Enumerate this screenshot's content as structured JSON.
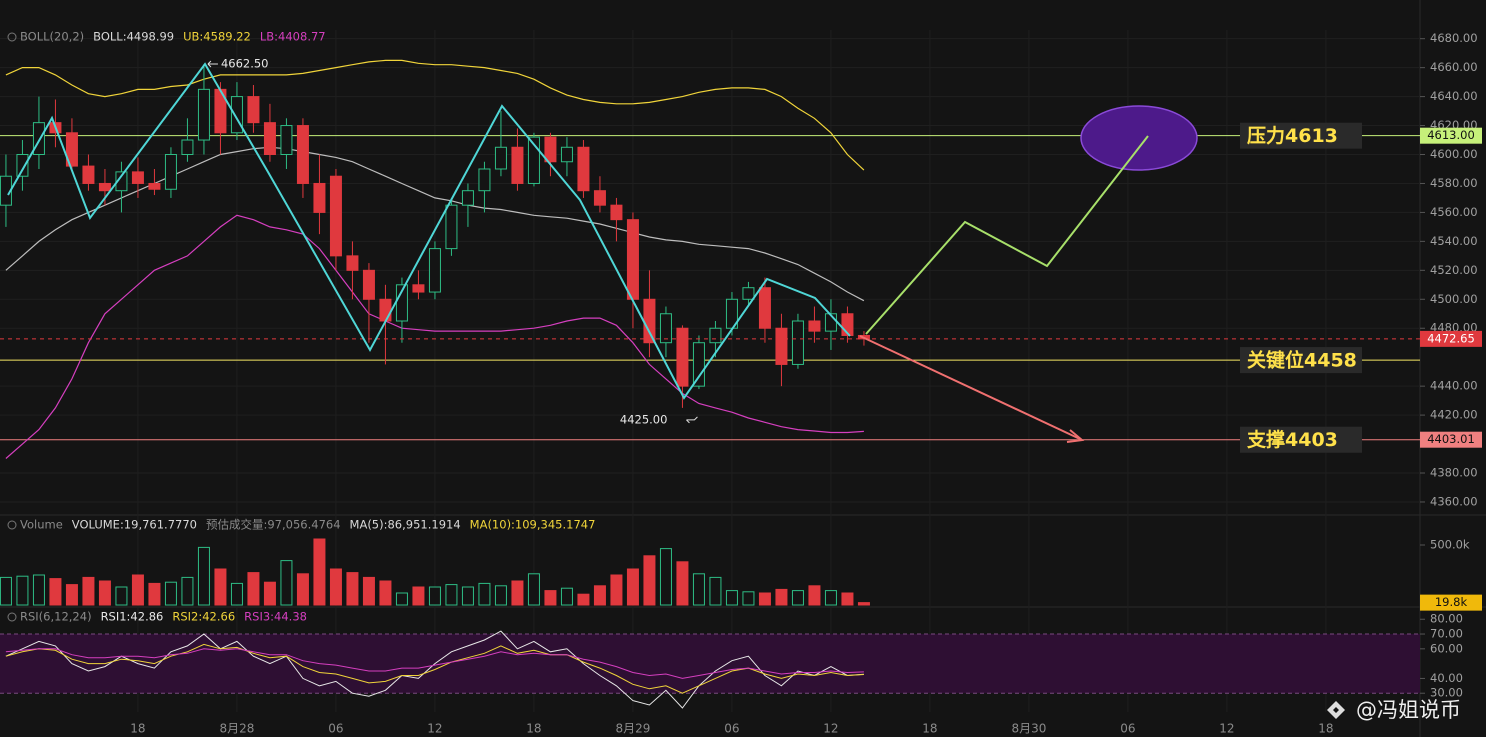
{
  "chart_data": [
    {
      "type": "candlestick",
      "up_color": "#2ebd85",
      "down_color": "#e0393e",
      "x": [
        0,
        1,
        2,
        3,
        4,
        5,
        6,
        7,
        8,
        9,
        10,
        11,
        12,
        13,
        14,
        15,
        16,
        17,
        18,
        19,
        20,
        21,
        22,
        23,
        24,
        25,
        26,
        27,
        28,
        29,
        30,
        31,
        32,
        33,
        34,
        35,
        36,
        37,
        38,
        39,
        40,
        41,
        42,
        43,
        44,
        45,
        46,
        47,
        48,
        49,
        50,
        51,
        52
      ],
      "open": [
        4565,
        4585,
        4600,
        4622,
        4615,
        4592,
        4580,
        4575,
        4588,
        4580,
        4576,
        4600,
        4610,
        4645,
        4615,
        4640,
        4622,
        4600,
        4620,
        4580,
        4585,
        4530,
        4520,
        4500,
        4485,
        4510,
        4505,
        4535,
        4565,
        4575,
        4590,
        4605,
        4580,
        4612,
        4595,
        4605,
        4575,
        4565,
        4555,
        4500,
        4470,
        4480,
        4440,
        4470,
        4480,
        4500,
        4508,
        4480,
        4455,
        4485,
        4478,
        4490,
        4475
      ],
      "high": [
        4600,
        4610,
        4640,
        4638,
        4625,
        4600,
        4590,
        4595,
        4598,
        4590,
        4605,
        4625,
        4662.5,
        4650,
        4650,
        4648,
        4635,
        4625,
        4625,
        4600,
        4590,
        4540,
        4525,
        4510,
        4515,
        4520,
        4540,
        4570,
        4580,
        4595,
        4630,
        4618,
        4615,
        4615,
        4612,
        4610,
        4585,
        4570,
        4560,
        4520,
        4495,
        4482,
        4475,
        4485,
        4505,
        4512,
        4515,
        4490,
        4490,
        4495,
        4500,
        4495,
        4478
      ],
      "low": [
        4550,
        4575,
        4590,
        4605,
        4590,
        4575,
        4565,
        4560,
        4570,
        4572,
        4570,
        4595,
        4600,
        4600,
        4610,
        4615,
        4595,
        4590,
        4570,
        4545,
        4520,
        4500,
        4470,
        4455,
        4470,
        4500,
        4500,
        4530,
        4550,
        4560,
        4585,
        4575,
        4578,
        4585,
        4585,
        4570,
        4560,
        4540,
        4480,
        4460,
        4460,
        4425,
        4438,
        4460,
        4475,
        4495,
        4470,
        4440,
        4452,
        4470,
        4465,
        4470,
        4468
      ],
      "close": [
        4585,
        4600,
        4622,
        4615,
        4592,
        4580,
        4575,
        4588,
        4580,
        4576,
        4600,
        4610,
        4645,
        4615,
        4640,
        4622,
        4600,
        4620,
        4580,
        4560,
        4530,
        4520,
        4500,
        4485,
        4510,
        4505,
        4535,
        4565,
        4575,
        4590,
        4605,
        4580,
        4612,
        4595,
        4605,
        4575,
        4565,
        4555,
        4500,
        4470,
        4490,
        4440,
        4470,
        4480,
        4500,
        4508,
        4480,
        4455,
        4485,
        4478,
        4490,
        4475,
        4472.65
      ],
      "series": [
        {
          "color": "#f0d43a",
          "values": [
            4655,
            4660,
            4660,
            4655,
            4648,
            4642,
            4640,
            4642,
            4645,
            4645,
            4647,
            4648,
            4652,
            4655,
            4655,
            4655,
            4655,
            4655,
            4656,
            4658,
            4660,
            4662,
            4664,
            4665,
            4665,
            4663,
            4662,
            4662,
            4661,
            4660,
            4658,
            4656,
            4652,
            4646,
            4641,
            4638,
            4636,
            4635,
            4635,
            4636,
            4638,
            4640,
            4643,
            4645,
            4646,
            4646,
            4645,
            4640,
            4632,
            4625,
            4615,
            4600,
            4589.22
          ]
        },
        {
          "color": "#bdbdbd",
          "values": [
            4520,
            4530,
            4540,
            4548,
            4555,
            4560,
            4565,
            4570,
            4575,
            4580,
            4585,
            4590,
            4595,
            4600,
            4602,
            4604,
            4605,
            4604,
            4602,
            4600,
            4598,
            4595,
            4590,
            4585,
            4580,
            4575,
            4570,
            4568,
            4565,
            4563,
            4562,
            4560,
            4558,
            4557,
            4556,
            4554,
            4552,
            4549,
            4546,
            4543,
            4541,
            4540,
            4538,
            4537,
            4536,
            4535,
            4532,
            4528,
            4524,
            4518,
            4512,
            4505,
            4498.99
          ]
        },
        {
          "color": "#d53fbf",
          "values": [
            4390,
            4400,
            4410,
            4425,
            4445,
            4470,
            4490,
            4500,
            4510,
            4520,
            4525,
            4530,
            4540,
            4550,
            4558,
            4555,
            4550,
            4548,
            4545,
            4535,
            4520,
            4505,
            4490,
            4485,
            4480,
            4479,
            4478,
            4478,
            4478,
            4478,
            4478,
            4479,
            4480,
            4482,
            4485,
            4487,
            4487,
            4482,
            4470,
            4455,
            4445,
            4435,
            4428,
            4425,
            4422,
            4418,
            4415,
            4412,
            4410,
            4409,
            4408,
            4408,
            4408.77
          ]
        }
      ],
      "legend": [
        {
          "label": "BOLL(20,2)",
          "color": "#8a8a8a"
        },
        {
          "label": "BOLL:4498.99",
          "color": "#d8d8d8"
        },
        {
          "label": "UB:4589.22",
          "color": "#f0d43a"
        },
        {
          "label": "LB:4408.77",
          "color": "#d53fbf"
        }
      ],
      "xlim": [
        -0.36,
        85.7
      ],
      "xticks": [
        {
          "value": 8,
          "label": "18"
        },
        {
          "value": 14,
          "label": "8月28"
        },
        {
          "value": 20,
          "label": "06"
        },
        {
          "value": 26,
          "label": "12"
        },
        {
          "value": 32,
          "label": "18"
        },
        {
          "value": 38,
          "label": "8月29"
        },
        {
          "value": 44,
          "label": "06"
        },
        {
          "value": 50,
          "label": "12"
        },
        {
          "value": 56,
          "label": "18"
        },
        {
          "value": 62,
          "label": "8月30"
        },
        {
          "value": 68,
          "label": "06"
        },
        {
          "value": 74,
          "label": "12"
        },
        {
          "value": 80,
          "label": "18"
        }
      ],
      "ylim": [
        4351,
        4686
      ],
      "yticks": [
        {
          "value": 4680,
          "label": "4680.00"
        },
        {
          "value": 4660,
          "label": "4660.00"
        },
        {
          "value": 4640,
          "label": "4640.00"
        },
        {
          "value": 4620,
          "label": "4620.00"
        },
        {
          "value": 4600,
          "label": "4600.00"
        },
        {
          "value": 4580,
          "label": "4580.00"
        },
        {
          "value": 4560,
          "label": "4560.00"
        },
        {
          "value": 4540,
          "label": "4540.00"
        },
        {
          "value": 4520,
          "label": "4520.00"
        },
        {
          "value": 4500,
          "label": "4500.00"
        },
        {
          "value": 4480,
          "label": "4480.00"
        },
        {
          "value": 4440,
          "label": "4440.00"
        },
        {
          "value": 4420,
          "label": "4420.00"
        },
        {
          "value": 4380,
          "label": "4380.00"
        },
        {
          "value": 4360,
          "label": "4360.00"
        }
      ],
      "grid": true,
      "annotations": [
        {
          "x": 12,
          "value": 4662.5,
          "label": "4662.50",
          "side": "right"
        },
        {
          "x": 41,
          "value": 4425,
          "label": "4425.00",
          "side": "left"
        }
      ],
      "levels": [
        {
          "value": 4613,
          "label": "压力4613",
          "color": "#c6f07a"
        },
        {
          "value": 4458,
          "label": "关键位4458",
          "color": "#f5e663"
        },
        {
          "value": 4403,
          "label": "支撑4403",
          "color": "#f08080"
        }
      ],
      "price_tags": [
        {
          "value": 4613,
          "label": "4613.00",
          "color": "#c6f07a",
          "text_color": "#111111"
        },
        {
          "value": 4472.65,
          "label": "4472.65",
          "color": "#e0393e",
          "text_color": "#ffffff",
          "dashed": true
        },
        {
          "value": 4403.01,
          "label": "4403.01",
          "color": "#f08080",
          "text_color": "#111111"
        }
      ]
    },
    {
      "type": "bar",
      "values": [
        230000,
        240000,
        250000,
        220000,
        170000,
        230000,
        200000,
        150000,
        250000,
        180000,
        190000,
        230000,
        480000,
        300000,
        180000,
        270000,
        190000,
        370000,
        260000,
        550000,
        300000,
        270000,
        230000,
        200000,
        100000,
        150000,
        150000,
        170000,
        150000,
        180000,
        160000,
        200000,
        260000,
        120000,
        140000,
        90000,
        160000,
        250000,
        300000,
        410000,
        470000,
        360000,
        260000,
        230000,
        120000,
        110000,
        100000,
        130000,
        120000,
        160000,
        120000,
        100000,
        19761.777
      ],
      "legend": [
        {
          "label": "Volume",
          "color": "#8a8a8a"
        },
        {
          "label": "VOLUME:19,761.7770",
          "color": "#d8d8d8"
        },
        {
          "label": "预估成交量:97,056.4764",
          "color": "#8a8a8a"
        },
        {
          "label": "MA(5):86,951.1914",
          "color": "#d8d8d8"
        },
        {
          "label": "MA(10):109,345.1747",
          "color": "#f0d43a"
        }
      ],
      "ylim": [
        0,
        750000
      ],
      "yticks": [
        {
          "value": 500000,
          "label": "500.0k"
        }
      ],
      "current": {
        "value": 19761.777,
        "label": "19.8k",
        "color": "#f0b90b"
      }
    },
    {
      "type": "line",
      "series": [
        {
          "color": "#e8e8e8",
          "values": [
            55,
            60,
            65,
            62,
            50,
            45,
            48,
            55,
            50,
            47,
            58,
            62,
            70,
            60,
            65,
            55,
            50,
            55,
            40,
            35,
            38,
            30,
            28,
            32,
            42,
            40,
            50,
            58,
            62,
            66,
            72,
            60,
            65,
            58,
            60,
            50,
            42,
            35,
            25,
            22,
            32,
            20,
            35,
            45,
            52,
            55,
            42,
            35,
            45,
            42,
            48,
            42,
            42.86
          ]
        },
        {
          "color": "#f0d43a",
          "values": [
            55,
            58,
            60,
            59,
            53,
            50,
            50,
            53,
            52,
            50,
            55,
            58,
            63,
            60,
            61,
            57,
            54,
            55,
            48,
            44,
            43,
            40,
            37,
            38,
            42,
            42,
            46,
            51,
            54,
            57,
            62,
            57,
            59,
            56,
            56,
            51,
            47,
            42,
            36,
            33,
            35,
            30,
            35,
            40,
            45,
            47,
            43,
            40,
            43,
            42,
            44,
            42,
            42.66
          ]
        },
        {
          "color": "#d53fbf",
          "values": [
            58,
            59,
            60,
            60,
            56,
            54,
            54,
            55,
            55,
            54,
            56,
            57,
            60,
            59,
            60,
            58,
            56,
            56,
            52,
            50,
            49,
            47,
            45,
            45,
            47,
            47,
            49,
            51,
            53,
            55,
            58,
            56,
            57,
            56,
            56,
            53,
            51,
            48,
            44,
            42,
            43,
            40,
            42,
            44,
            46,
            47,
            45,
            43,
            44,
            44,
            45,
            44,
            44.38
          ]
        }
      ],
      "legend": [
        {
          "label": "RSI(6,12,24)",
          "color": "#8a8a8a"
        },
        {
          "label": "RSI1:42.86",
          "color": "#e8e8e8"
        },
        {
          "label": "RSI2:42.66",
          "color": "#f0d43a"
        },
        {
          "label": "RSI3:44.38",
          "color": "#d53fbf"
        }
      ],
      "ylim": [
        17.3,
        87.6
      ],
      "yticks": [
        {
          "value": 80,
          "label": "80.00"
        },
        {
          "value": 70,
          "label": "70.00"
        },
        {
          "value": 60,
          "label": "60.00"
        },
        {
          "value": 40,
          "label": "40.00"
        },
        {
          "value": 30,
          "label": "30.00"
        }
      ],
      "band": [
        30,
        70
      ]
    }
  ],
  "watermark": "@冯姐说币"
}
